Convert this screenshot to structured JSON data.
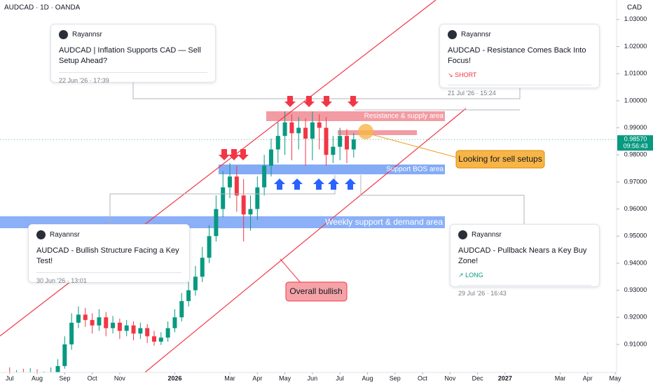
{
  "chart_data": {
    "type": "candlestick",
    "title": "AUDCAD · 1D · OANDA",
    "y_unit": "CAD",
    "x": [
      0,
      0.25,
      0.5,
      0.75,
      1,
      1.25,
      1.5,
      1.75,
      2,
      2.25,
      2.5,
      2.75,
      3,
      3.25,
      3.5,
      3.75,
      4,
      4.25,
      4.5,
      4.75,
      5,
      5.25,
      5.5,
      5.75,
      6,
      6.25,
      6.5,
      6.75,
      7,
      7.25,
      7.5,
      7.75,
      8,
      8.25,
      8.5,
      8.75,
      9,
      9.25,
      9.5,
      9.75,
      10,
      10.25,
      10.5,
      10.75,
      11,
      11.25,
      11.5,
      11.75,
      12,
      12.25,
      12.5
    ],
    "open": [
      0.899,
      0.8975,
      0.8985,
      0.897,
      0.899,
      0.8965,
      0.898,
      0.8995,
      0.902,
      0.91,
      0.918,
      0.921,
      0.919,
      0.917,
      0.92,
      0.916,
      0.918,
      0.915,
      0.917,
      0.914,
      0.916,
      0.913,
      0.911,
      0.9125,
      0.916,
      0.92,
      0.926,
      0.93,
      0.935,
      0.942,
      0.95,
      0.96,
      0.968,
      0.972,
      0.965,
      0.958,
      0.96,
      0.968,
      0.976,
      0.982,
      0.987,
      0.992,
      0.988,
      0.99,
      0.986,
      0.992,
      0.99,
      0.98,
      0.983,
      0.987,
      0.982
    ],
    "high": [
      0.9015,
      0.9005,
      0.901,
      0.9012,
      0.9008,
      0.9,
      0.9015,
      0.9045,
      0.913,
      0.9215,
      0.924,
      0.9235,
      0.9215,
      0.923,
      0.922,
      0.9205,
      0.9195,
      0.919,
      0.9185,
      0.918,
      0.9175,
      0.915,
      0.9145,
      0.9185,
      0.923,
      0.929,
      0.933,
      0.939,
      0.946,
      0.954,
      0.965,
      0.974,
      0.977,
      0.976,
      0.971,
      0.965,
      0.972,
      0.98,
      0.986,
      0.992,
      0.996,
      0.995,
      0.994,
      0.9935,
      0.996,
      0.995,
      0.994,
      0.987,
      0.99,
      0.9895,
      0.988
    ],
    "low": [
      0.895,
      0.8955,
      0.895,
      0.8955,
      0.895,
      0.8952,
      0.896,
      0.898,
      0.901,
      0.908,
      0.916,
      0.9165,
      0.914,
      0.915,
      0.913,
      0.914,
      0.912,
      0.913,
      0.9115,
      0.912,
      0.9105,
      0.9095,
      0.9098,
      0.911,
      0.9145,
      0.9185,
      0.924,
      0.928,
      0.933,
      0.94,
      0.948,
      0.957,
      0.964,
      0.959,
      0.948,
      0.952,
      0.956,
      0.965,
      0.972,
      0.977,
      0.98,
      0.978,
      0.982,
      0.976,
      0.978,
      0.982,
      0.976,
      0.977,
      0.978,
      0.977,
      0.979
    ],
    "close": [
      0.8975,
      0.8985,
      0.897,
      0.899,
      0.8965,
      0.898,
      0.8995,
      0.902,
      0.91,
      0.918,
      0.921,
      0.919,
      0.917,
      0.92,
      0.916,
      0.918,
      0.915,
      0.917,
      0.914,
      0.916,
      0.913,
      0.911,
      0.9125,
      0.916,
      0.92,
      0.926,
      0.93,
      0.935,
      0.942,
      0.95,
      0.96,
      0.968,
      0.972,
      0.965,
      0.958,
      0.96,
      0.968,
      0.976,
      0.982,
      0.987,
      0.992,
      0.988,
      0.99,
      0.986,
      0.992,
      0.99,
      0.98,
      0.983,
      0.987,
      0.982,
      0.9857
    ],
    "up_color": "#089981",
    "down_color": "#f23645",
    "grid": false,
    "xlim": [
      -0.35,
      22.05
    ],
    "ylim": [
      0.895,
      1.0372
    ],
    "xticks": [
      {
        "value": 0,
        "label": "Jul"
      },
      {
        "value": 1,
        "label": "Aug"
      },
      {
        "value": 2,
        "label": "Sep"
      },
      {
        "value": 3,
        "label": "Oct"
      },
      {
        "value": 4,
        "label": "Nov"
      },
      {
        "value": 6,
        "label": "2026"
      },
      {
        "value": 8,
        "label": "Mar"
      },
      {
        "value": 9,
        "label": "Apr"
      },
      {
        "value": 10,
        "label": "May"
      },
      {
        "value": 11,
        "label": "Jun"
      },
      {
        "value": 12,
        "label": "Jul"
      },
      {
        "value": 13,
        "label": "Aug"
      },
      {
        "value": 14,
        "label": "Sep"
      },
      {
        "value": 15,
        "label": "Oct"
      },
      {
        "value": 16,
        "label": "Nov"
      },
      {
        "value": 17,
        "label": "Dec"
      },
      {
        "value": 18,
        "label": "2027"
      },
      {
        "value": 20,
        "label": "Mar"
      },
      {
        "value": 21,
        "label": "Apr"
      },
      {
        "value": 22,
        "label": "May"
      }
    ],
    "yticks": [
      {
        "value": 0.91,
        "label": "0.91000"
      },
      {
        "value": 0.92,
        "label": "0.92000"
      },
      {
        "value": 0.93,
        "label": "0.93000"
      },
      {
        "value": 0.94,
        "label": "0.94000"
      },
      {
        "value": 0.95,
        "label": "0.95000"
      },
      {
        "value": 0.96,
        "label": "0.96000"
      },
      {
        "value": 0.97,
        "label": "0.97000"
      },
      {
        "value": 0.98,
        "label": "0.98000"
      },
      {
        "value": 0.99,
        "label": "0.99000"
      },
      {
        "value": 1.0,
        "label": "1.00000"
      },
      {
        "value": 1.01,
        "label": "1.01000"
      },
      {
        "value": 1.02,
        "label": "1.02000"
      },
      {
        "value": 1.03,
        "label": "1.03000"
      }
    ],
    "last_price": {
      "value": 0.9857,
      "label": "0.98570"
    },
    "countdown": "09:56:43",
    "annotations": {
      "resistance": "Resistance & supply area",
      "support": "Support BOS area",
      "weekly": "Weekly support & demand area",
      "sell_callout": "Looking for sell setups",
      "bullish_callout": "Overall bullish"
    }
  },
  "ideas": [
    {
      "author": "Rayannsr",
      "title": "AUDCAD | Inflation Supports CAD — Sell Setup Ahead?",
      "date": "22 Jun '26 · 17:39"
    },
    {
      "author": "Rayannsr",
      "title": "AUDCAD - Resistance Comes Back Into Focus!",
      "tag": "SHORT",
      "date": "21 Jul '26 · 15:24"
    },
    {
      "author": "Rayannsr",
      "title": "AUDCAD - Bullish Structure Facing a Key Test!",
      "date": "30 Jun '26 · 13:01"
    },
    {
      "author": "Rayannsr",
      "title": "AUDCAD - Pullback Nears a Key Buy Zone!",
      "tag": "LONG",
      "date": "29 Jul '26 · 16:43"
    }
  ]
}
